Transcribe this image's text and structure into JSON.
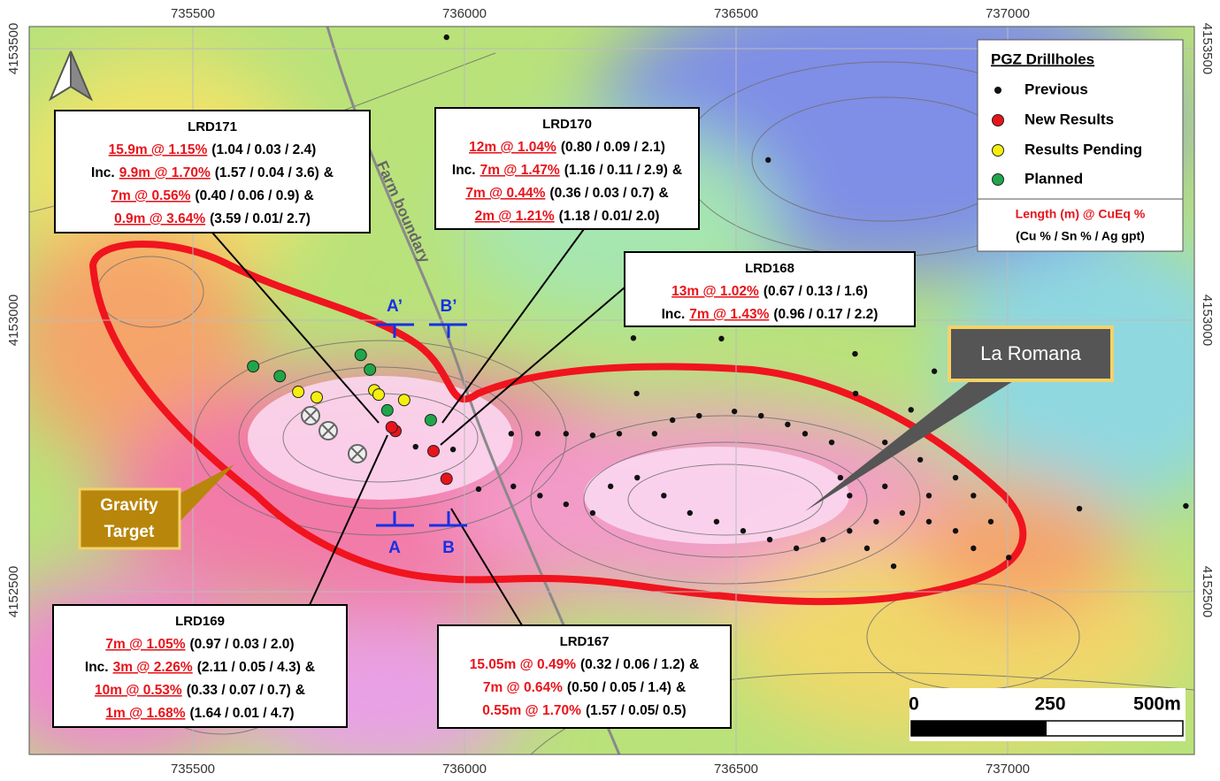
{
  "map": {
    "eastings": [
      735500,
      736000,
      736500,
      737000
    ],
    "northings": [
      4153500,
      4153000,
      4152500
    ],
    "legend": {
      "title": "PGZ Drillholes",
      "entries": [
        {
          "label": "Previous",
          "color": "#111111",
          "holes": [
            [
              736086,
              4152791
            ],
            [
              736135,
              4152791
            ],
            [
              736187,
              4152791
            ],
            [
              736236,
              4152788
            ],
            [
              736285,
              4152791
            ],
            [
              736350,
              4152791
            ],
            [
              736383,
              4152816
            ],
            [
              736432,
              4152824
            ],
            [
              736497,
              4152832
            ],
            [
              736546,
              4152824
            ],
            [
              736595,
              4152808
            ],
            [
              736627,
              4152791
            ],
            [
              736676,
              4152775
            ],
            [
              736090,
              4152694
            ],
            [
              736139,
              4152677
            ],
            [
              736187,
              4152661
            ],
            [
              736236,
              4152645
            ],
            [
              736269,
              4152694
            ],
            [
              736318,
              4152710
            ],
            [
              736367,
              4152677
            ],
            [
              736415,
              4152645
            ],
            [
              736464,
              4152629
            ],
            [
              736513,
              4152612
            ],
            [
              736562,
              4152596
            ],
            [
              736611,
              4152580
            ],
            [
              736660,
              4152596
            ],
            [
              736709,
              4152612
            ],
            [
              736758,
              4152629
            ],
            [
              736806,
              4152645
            ],
            [
              736855,
              4152629
            ],
            [
              736904,
              4152612
            ],
            [
              736937,
              4152580
            ],
            [
              737002,
              4152563
            ],
            [
              737132,
              4152653
            ],
            [
              737328,
              4152658
            ],
            [
              736790,
              4152547
            ],
            [
              736741,
              4152580
            ],
            [
              736709,
              4152677
            ],
            [
              736692,
              4152710
            ],
            [
              736774,
              4152694
            ],
            [
              736855,
              4152677
            ],
            [
              736937,
              4152677
            ],
            [
              736774,
              4152775
            ],
            [
              736839,
              4152743
            ],
            [
              736904,
              4152710
            ],
            [
              736969,
              4152629
            ],
            [
              735967,
              4153521
            ],
            [
              736559,
              4153295
            ],
            [
              736311,
              4152967
            ],
            [
              736473,
              4152966
            ],
            [
              736719,
              4152938
            ],
            [
              736865,
              4152906
            ],
            [
              736720,
              4152865
            ],
            [
              736822,
              4152835
            ],
            [
              736317,
              4152865
            ],
            [
              735910,
              4152767
            ],
            [
              735979,
              4152762
            ],
            [
              736026,
              4152689
            ]
          ]
        },
        {
          "label": "New Results",
          "color": "#e8141b",
          "holes": [
            [
              735873,
              4152796
            ],
            [
              735866,
              4152803
            ],
            [
              735943,
              4152759
            ],
            [
              735967,
              4152708
            ]
          ]
        },
        {
          "label": "Results Pending",
          "color": "#f5ef0f",
          "holes": [
            [
              735694,
              4152868
            ],
            [
              735728,
              4152858
            ],
            [
              735834,
              4152871
            ],
            [
              735842,
              4152863
            ],
            [
              735889,
              4152853
            ]
          ]
        },
        {
          "label": "Planned",
          "color": "#1fa64a",
          "holes": [
            [
              735611,
              4152915
            ],
            [
              735660,
              4152897
            ],
            [
              735809,
              4152936
            ],
            [
              735826,
              4152909
            ],
            [
              735858,
              4152834
            ],
            [
              735938,
              4152816
            ]
          ]
        }
      ],
      "format_title": "Length (m) @ CuEq %",
      "format_detail": "(Cu % / Sn % / Ag gpt)"
    },
    "callouts": [
      {
        "title": "LRD171",
        "underline": true,
        "lines": [
          {
            "grade": "15.9m @ 1.15%",
            "detail": "(1.04 / 0.03 / 2.4)"
          },
          {
            "prefix": "Inc.",
            "grade": "9.9m @ 1.70%",
            "detail": "(1.57 / 0.04 / 3.6)",
            "suffix": "&"
          },
          {
            "grade": "7m @ 0.56%",
            "detail": "(0.40 / 0.06 / 0.9)",
            "suffix": "&"
          },
          {
            "grade": "0.9m @ 3.64%",
            "detail": "(3.59 / 0.01/ 2.7)"
          }
        ]
      },
      {
        "title": "LRD170",
        "underline": true,
        "lines": [
          {
            "grade": "12m @ 1.04%",
            "detail": "(0.80 / 0.09 / 2.1)"
          },
          {
            "prefix": "Inc.",
            "grade": "7m @ 1.47%",
            "detail": "(1.16 / 0.11 / 2.9)",
            "suffix": "&"
          },
          {
            "grade": "7m @ 0.44%",
            "detail": "(0.36 / 0.03 / 0.7)",
            "suffix": "&"
          },
          {
            "grade": "2m @ 1.21%",
            "detail": "(1.18 / 0.01/ 2.0)"
          }
        ]
      },
      {
        "title": "LRD168",
        "underline": true,
        "lines": [
          {
            "grade": "13m @ 1.02%",
            "detail": "(0.67 / 0.13 / 1.6)"
          },
          {
            "prefix": "Inc.",
            "grade": "7m @ 1.43%",
            "detail": "(0.96 / 0.17 / 2.2)"
          }
        ]
      },
      {
        "title": "LRD169",
        "underline": true,
        "lines": [
          {
            "grade": "7m @ 1.05%",
            "detail": "(0.97 / 0.03 / 2.0)"
          },
          {
            "prefix": "Inc.",
            "grade": "3m @ 2.26%",
            "detail": "(2.11 / 0.05 / 4.3)",
            "suffix": "&"
          },
          {
            "grade": "10m @ 0.53%",
            "detail": "(0.33 / 0.07 / 0.7)",
            "suffix": "&"
          },
          {
            "grade": "1m @ 1.68%",
            "detail": "(1.64 / 0.01 / 4.7)"
          }
        ]
      },
      {
        "title": "LRD167",
        "underline": false,
        "lines": [
          {
            "grade": "15.05m @ 0.49%",
            "detail": "(0.32 / 0.06 / 1.2)",
            "suffix": "&"
          },
          {
            "grade": "7m @ 0.64%",
            "detail": "(0.50 / 0.05 / 1.4)",
            "suffix": "&"
          },
          {
            "grade": "0.55m @ 1.70%",
            "detail": "(1.57 / 0.05/ 0.5)"
          }
        ]
      }
    ],
    "farm_label": "Farm boundary",
    "deposit_label": "La Romana",
    "target_label": [
      "Gravity",
      "Target"
    ],
    "sections": [
      "A’",
      "B’",
      "A",
      "B"
    ],
    "scale_bar": [
      "0",
      "250",
      "500m"
    ]
  }
}
